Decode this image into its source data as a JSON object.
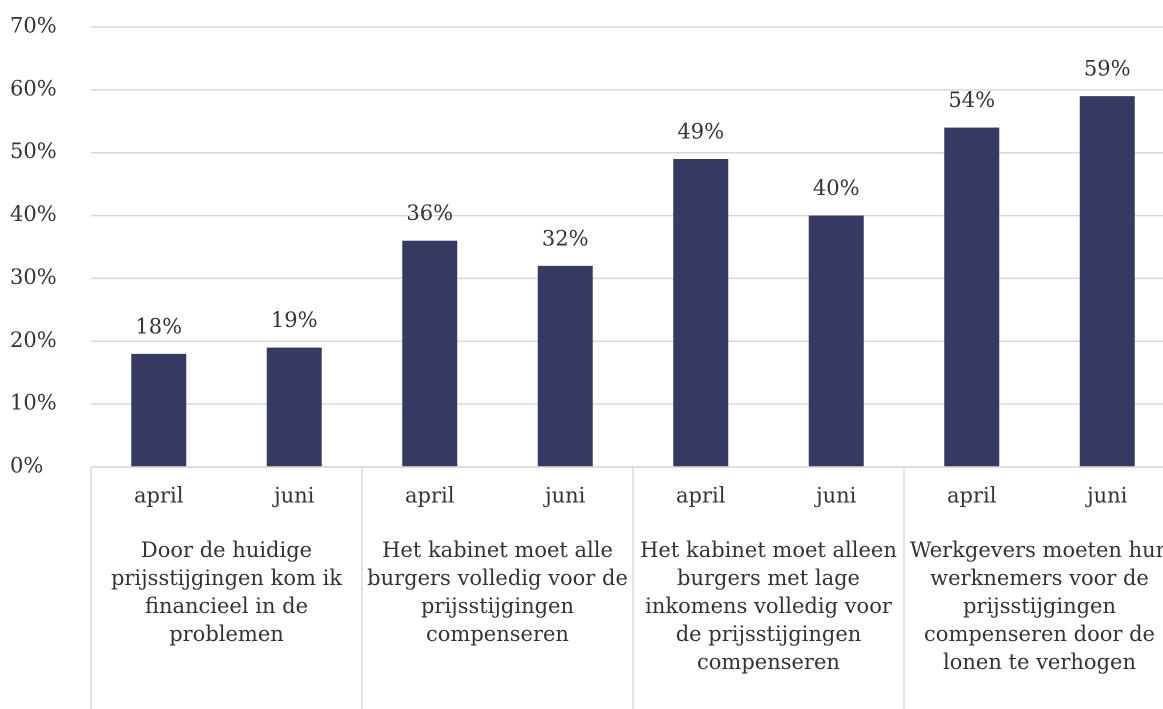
{
  "chart_data": {
    "type": "bar",
    "groups": [
      {
        "label": "Door de huidige prijsstijgingen kom ik financieel in de problemen",
        "categories": [
          "april",
          "juni"
        ]
      },
      {
        "label": "Het kabinet moet alle burgers volledig voor de prijsstijgingen compenseren",
        "categories": [
          "april",
          "juni"
        ]
      },
      {
        "label": "Het kabinet moet alleen burgers met lage inkomens volledig voor de prijsstijgingen compenseren",
        "categories": [
          "april",
          "juni"
        ]
      },
      {
        "label": "Werkgevers moeten hun werknemers voor de prijsstijgingen compenseren door de lonen te verhogen",
        "categories": [
          "april",
          "juni"
        ]
      }
    ],
    "values": [
      18,
      19,
      36,
      32,
      49,
      40,
      54,
      59
    ],
    "value_labels": [
      "18%",
      "19%",
      "36%",
      "32%",
      "49%",
      "40%",
      "54%",
      "59%"
    ],
    "color": "#363a63",
    "ylim": [
      0,
      70
    ],
    "yticks": [
      {
        "value": 0,
        "label": "0%"
      },
      {
        "value": 10,
        "label": "10%"
      },
      {
        "value": 20,
        "label": "20%"
      },
      {
        "value": 30,
        "label": "30%"
      },
      {
        "value": 40,
        "label": "40%"
      },
      {
        "value": 50,
        "label": "50%"
      },
      {
        "value": 60,
        "label": "60%"
      },
      {
        "value": 70,
        "label": "70%"
      }
    ],
    "grid": true
  }
}
